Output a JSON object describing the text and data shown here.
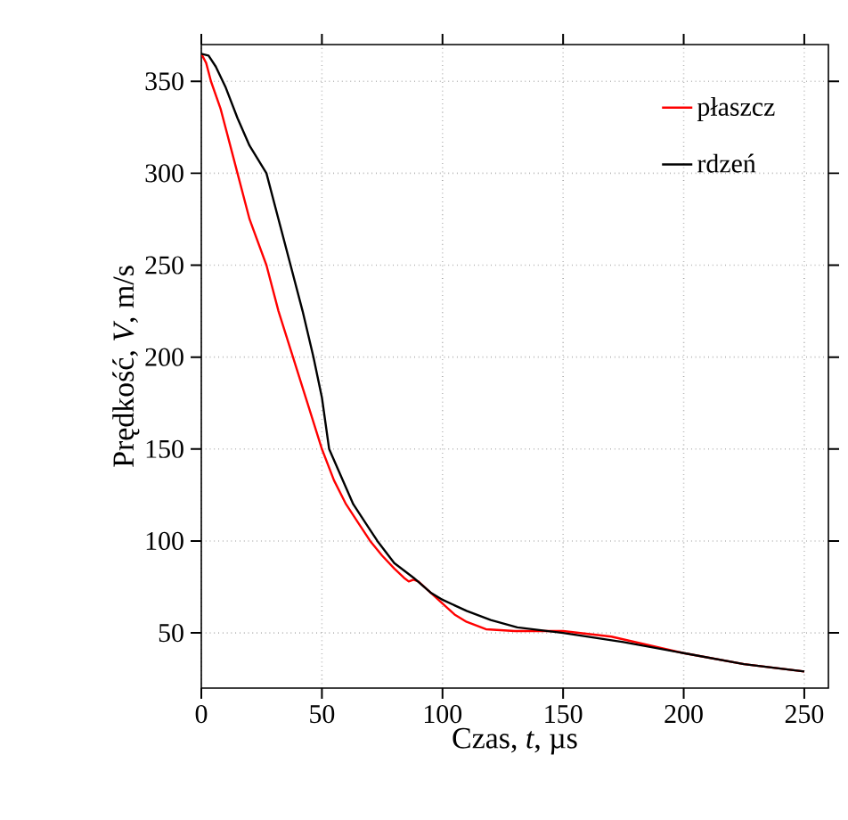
{
  "chart_data": {
    "type": "line",
    "xlabel": "Czas, *t*, µs",
    "ylabel": "Prędkość, *V*, m/s",
    "xlim": [
      0,
      260
    ],
    "ylim": [
      20,
      370
    ],
    "xticks": [
      0,
      50,
      100,
      150,
      200,
      250
    ],
    "yticks": [
      50,
      100,
      150,
      200,
      250,
      300,
      350
    ],
    "grid": true,
    "legend": "top right",
    "marker": "none",
    "line_style": "solid",
    "series": [
      {
        "name": "płaszcz",
        "color": "#ff0000",
        "x": [
          0,
          2,
          4,
          8,
          12,
          15,
          20,
          27,
          32,
          38,
          44,
          50,
          55,
          60,
          65,
          70,
          75,
          80,
          84,
          86,
          88,
          90,
          95,
          100,
          105,
          110,
          118,
          130,
          150,
          170,
          200,
          225,
          250
        ],
        "values": [
          365,
          360,
          350,
          335,
          315,
          300,
          275,
          250,
          225,
          200,
          175,
          150,
          133,
          120,
          110,
          100,
          92,
          85,
          80,
          78,
          79,
          78,
          72,
          66,
          60,
          56,
          52,
          51,
          51,
          48,
          39,
          33,
          29
        ]
      },
      {
        "name": "rdzeń",
        "color": "#000000",
        "x": [
          0,
          3,
          6,
          10,
          15,
          20,
          27,
          32,
          37,
          42,
          46.5,
          50,
          53,
          58,
          63,
          68,
          73,
          80,
          88,
          95,
          100,
          110,
          120,
          131,
          150,
          175,
          200,
          225,
          250
        ],
        "values": [
          365,
          364,
          358,
          347,
          330,
          315,
          300,
          275,
          250,
          225,
          200,
          178,
          150,
          135,
          120,
          110,
          100,
          88,
          80,
          72,
          68,
          62,
          57,
          53,
          50,
          45,
          39,
          33,
          29
        ]
      }
    ]
  }
}
